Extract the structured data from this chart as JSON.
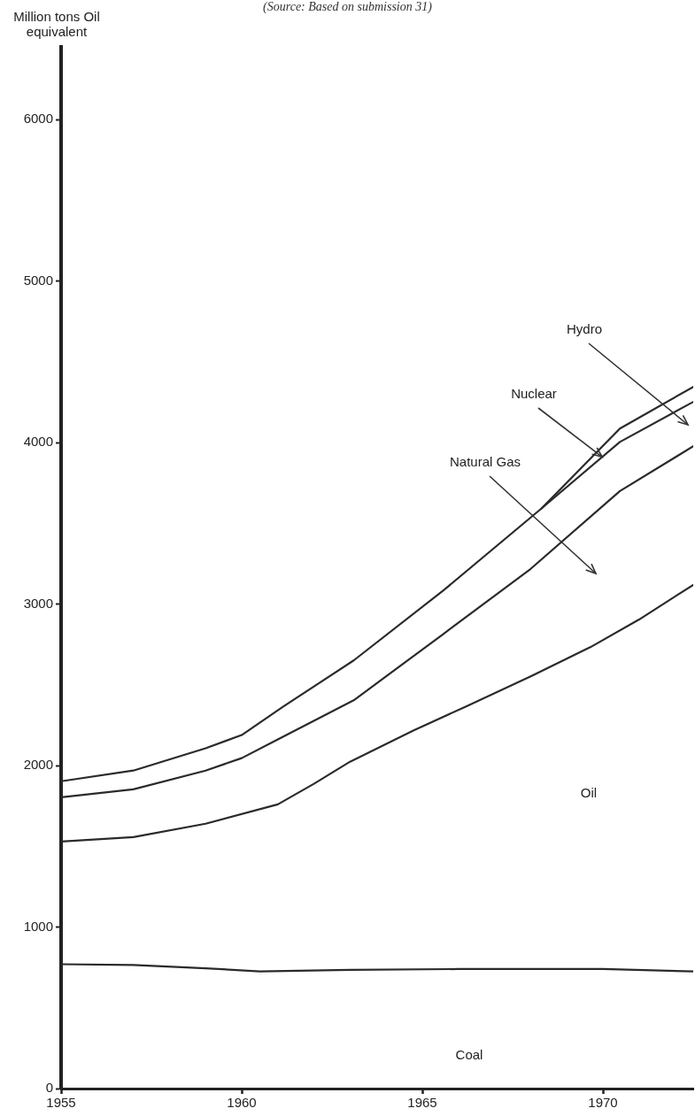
{
  "chart_data": {
    "type": "line",
    "ylabel": "Million tons Oil equivalent",
    "xlim": [
      1955,
      1972.5
    ],
    "xticks": [
      1955,
      1960,
      1965,
      1970
    ],
    "ylim": [
      0,
      6450
    ],
    "yticks": [
      0,
      1000,
      2000,
      3000,
      4000,
      5000,
      6000
    ],
    "grid": false,
    "legend": false,
    "marker": "none",
    "line_style": "solid",
    "series": [
      {
        "color": "#2a2a2a",
        "x": [
          1955,
          1957,
          1959,
          1960.5,
          1963,
          1966,
          1970,
          1972.5
        ],
        "values": [
          770,
          765,
          745,
          725,
          735,
          740,
          740,
          725
        ]
      },
      {
        "color": "#2a2a2a",
        "x": [
          1955,
          1957,
          1959,
          1961,
          1962,
          1963,
          1964.75,
          1966.2,
          1968,
          1969.66,
          1971,
          1972.5
        ],
        "values": [
          1530,
          1557,
          1640,
          1760,
          1887,
          2024,
          2217,
          2365,
          2552,
          2734,
          2904,
          3119
        ]
      },
      {
        "color": "#2a2a2a",
        "x": [
          1955,
          1957,
          1959,
          1960,
          1961,
          1963.1,
          1965.56,
          1968,
          1970.47,
          1972.5
        ],
        "values": [
          1804,
          1853,
          1969,
          2046,
          2162,
          2404,
          2811,
          3218,
          3700,
          3977
        ]
      },
      {
        "color": "#2a2a2a",
        "x": [
          1968.3,
          1970.47,
          1972.5
        ],
        "values": [
          3592,
          4004,
          4252
        ]
      },
      {
        "color": "#2a2a2a",
        "x": [
          1955,
          1957,
          1959,
          1960,
          1961.15,
          1963.1,
          1965.56,
          1968.3,
          1970.47,
          1972.5
        ],
        "values": [
          1903,
          1969,
          2107,
          2189,
          2365,
          2651,
          3080,
          3592,
          4087,
          4345
        ]
      }
    ],
    "annotations": [
      "(Source: Based on submission 31)",
      "Hydro",
      {
        "text": "Nuclear",
        "x": 1969.98,
        "y": 3911
      },
      "Natural Gas",
      "Oil",
      "Coal"
    ]
  }
}
